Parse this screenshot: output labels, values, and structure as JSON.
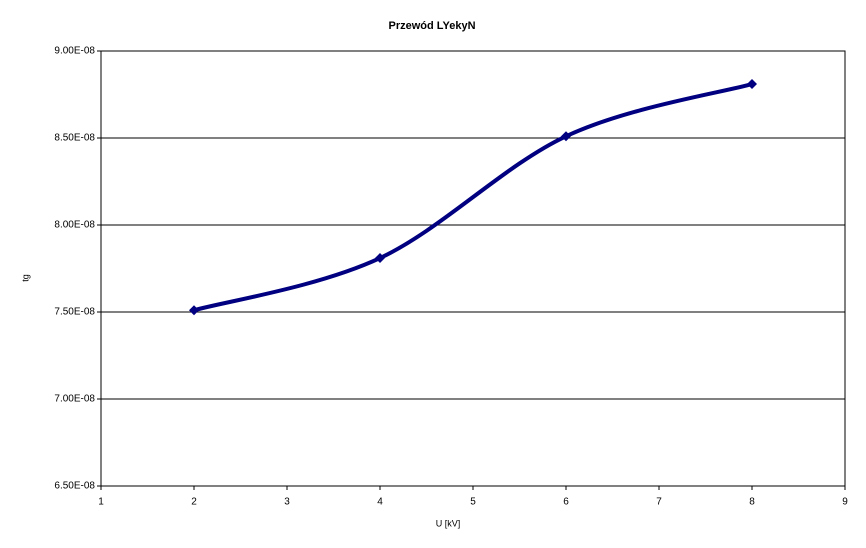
{
  "chart_data": {
    "type": "line",
    "title": "Przewód LYekyN",
    "x_label": "U [kV]",
    "y_label": "tg",
    "x": [
      2,
      4,
      6,
      8
    ],
    "series": [
      {
        "name": "tg",
        "color": "#000080",
        "values": [
          7.51e-08,
          7.81e-08,
          8.51e-08,
          8.81e-08
        ]
      }
    ],
    "xlim": [
      1,
      9
    ],
    "xticks": [
      1,
      2,
      3,
      4,
      5,
      6,
      7,
      8,
      9
    ],
    "ylim": [
      6.5e-08,
      9e-08
    ],
    "yticks": [
      {
        "value": 6.5e-08,
        "label": "6.50E-08"
      },
      {
        "value": 7e-08,
        "label": "7.00E-08"
      },
      {
        "value": 7.5e-08,
        "label": "7.50E-08"
      },
      {
        "value": 8e-08,
        "label": "8.00E-08"
      },
      {
        "value": 8.5e-08,
        "label": "8.50E-08"
      },
      {
        "value": 9e-08,
        "label": "9.00E-08"
      }
    ],
    "grid": true,
    "smooth": true
  }
}
